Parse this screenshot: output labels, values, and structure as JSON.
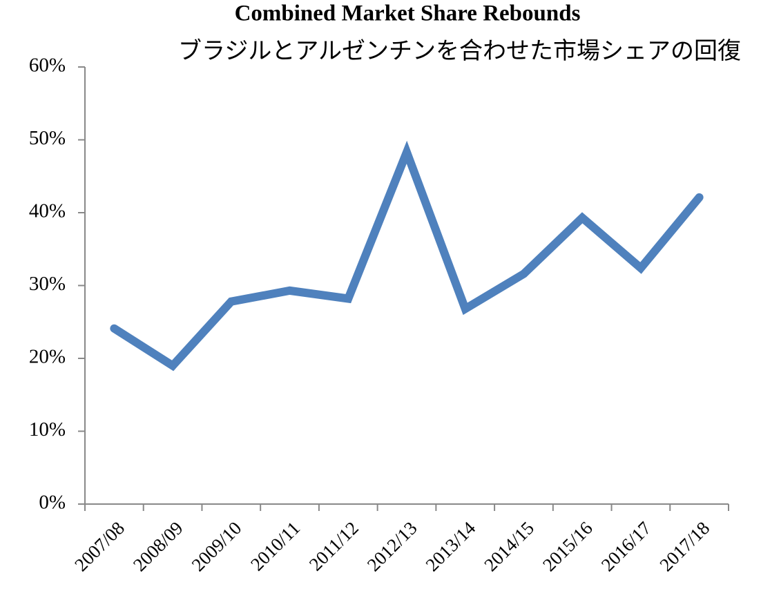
{
  "chart_data": {
    "type": "line",
    "title": "Combined Market Share Rebounds",
    "subtitle": "ブラジルとアルゼンチンを合わせた市場シェアの回復",
    "categories": [
      "2007/08",
      "2008/09",
      "2009/10",
      "2010/11",
      "2011/12",
      "2012/13",
      "2013/14",
      "2014/15",
      "2015/16",
      "2016/17",
      "2017/18"
    ],
    "series": [
      {
        "name": "Combined Market Share",
        "color": "#4f81bd",
        "values": [
          24.1,
          19.0,
          27.8,
          29.3,
          28.2,
          48.3,
          26.8,
          31.6,
          39.3,
          32.4,
          42.1
        ]
      }
    ],
    "ylim": [
      0,
      60
    ],
    "yticks": [
      {
        "value": 0,
        "label": "0%"
      },
      {
        "value": 10,
        "label": "10%"
      },
      {
        "value": 20,
        "label": "20%"
      },
      {
        "value": 30,
        "label": "30%"
      },
      {
        "value": 40,
        "label": "40%"
      },
      {
        "value": 50,
        "label": "50%"
      },
      {
        "value": 60,
        "label": "60%"
      }
    ],
    "grid": false
  }
}
